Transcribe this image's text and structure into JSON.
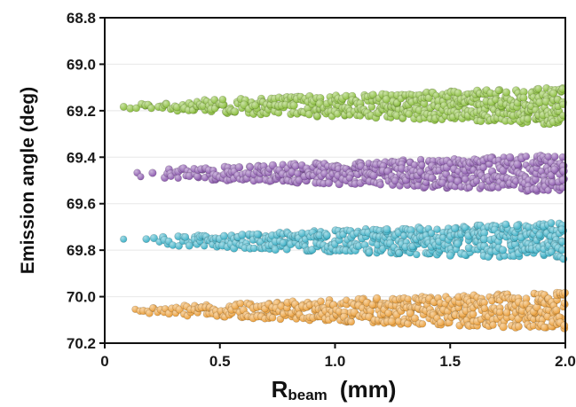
{
  "chart_data": {
    "type": "scatter",
    "title": "",
    "xlabel": {
      "main": "R",
      "sub": "beam",
      "unit": "(mm)"
    },
    "ylabel": "Emission angle (deg)",
    "xlim": [
      0,
      2.0
    ],
    "ylim": [
      68.8,
      70.2
    ],
    "y_inverted": true,
    "grid": "horizontal",
    "legend": "none",
    "x_ticks": [
      "0",
      "0.5",
      "1.0",
      "1.5",
      "2.0"
    ],
    "x_tick_values": [
      0,
      0.5,
      1.0,
      1.5,
      2.0
    ],
    "y_ticks": [
      "68.8",
      "69.0",
      "69.2",
      "69.4",
      "69.6",
      "69.8",
      "70.0",
      "70.2"
    ],
    "y_tick_values": [
      68.8,
      69.0,
      69.2,
      69.4,
      69.6,
      69.8,
      70.0,
      70.2
    ],
    "series": [
      {
        "color": "#8cbf3f",
        "center": 69.18,
        "x_start": 0.06,
        "x_end": 2.0,
        "half_width_start": 0.01,
        "half_width_end": 0.08
      },
      {
        "color": "#8e5cb0",
        "center": 69.47,
        "x_start": 0.08,
        "x_end": 2.0,
        "half_width_start": 0.01,
        "half_width_end": 0.08
      },
      {
        "color": "#3fb2c8",
        "center": 69.76,
        "x_start": 0.08,
        "x_end": 2.0,
        "half_width_start": 0.01,
        "half_width_end": 0.08
      },
      {
        "color": "#eba03c",
        "center": 70.06,
        "x_start": 0.1,
        "x_end": 2.0,
        "half_width_start": 0.01,
        "half_width_end": 0.08
      }
    ]
  }
}
